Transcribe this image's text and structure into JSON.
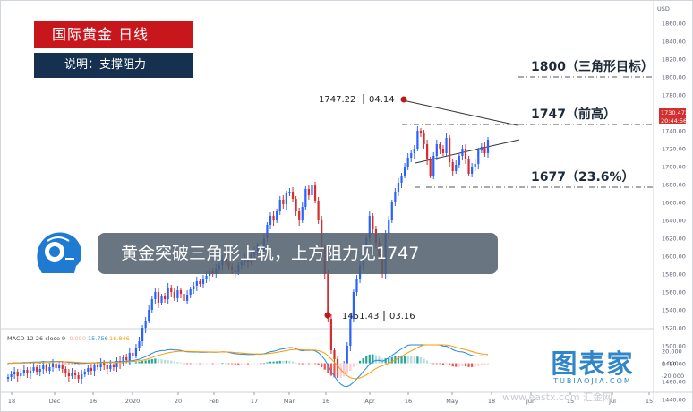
{
  "title": "国际黄金 日线",
  "subtitle": "说明：支撑阻力",
  "banner": "黄金突破三角形上轨，上方阻力见1747",
  "brand": {
    "cn": "图表家",
    "en": "TUBIAOJIA.COM"
  },
  "watermark": "www.eastx.com  汇金网",
  "colors": {
    "title_bg": "#c8161d",
    "subtitle_bg": "#16314f",
    "up": "#2962ff",
    "down": "#d32f2f",
    "accent": "#2f86c8"
  },
  "chart_data": [
    {
      "type": "candlestick",
      "ylabel": "USD",
      "ylim": [
        1440,
        1880
      ],
      "y_ticks": [
        1440,
        1460,
        1480,
        1500,
        1520,
        1540,
        1560,
        1580,
        1600,
        1620,
        1640,
        1660,
        1680,
        1700,
        1720,
        1740,
        1760,
        1780,
        1800,
        1820,
        1840,
        1860
      ],
      "x_ticks": [
        "18",
        "Dec",
        "16",
        "2020",
        "20",
        "Feb",
        "17",
        "Mar",
        "16",
        "Apr",
        "16",
        "May",
        "18",
        "Jun",
        "15",
        "Jul",
        "15"
      ],
      "current_price": "1730.472",
      "current_time": "20:44:56",
      "levels": [
        {
          "value": 1800,
          "label": "1800（三角形目标）"
        },
        {
          "value": 1747,
          "label": "1747（前高）"
        },
        {
          "value": 1677,
          "label": "1677（23.6%）"
        }
      ],
      "annotations": [
        {
          "price": "1747.22",
          "date": "04.14"
        },
        {
          "price": "1451.43",
          "date": "03.16"
        }
      ],
      "closes": [
        1465,
        1468,
        1471,
        1466,
        1470,
        1473,
        1469,
        1472,
        1476,
        1471,
        1474,
        1478,
        1472,
        1476,
        1480,
        1475,
        1478,
        1474,
        1470,
        1466,
        1470,
        1467,
        1463,
        1468,
        1471,
        1475,
        1472,
        1478,
        1476,
        1481,
        1478,
        1474,
        1479,
        1476,
        1483,
        1480,
        1487,
        1484,
        1492,
        1489,
        1498,
        1505,
        1520,
        1528,
        1540,
        1552,
        1560,
        1548,
        1555,
        1552,
        1565,
        1560,
        1553,
        1562,
        1558,
        1550,
        1557,
        1563,
        1567,
        1572,
        1569,
        1575,
        1578,
        1583,
        1580,
        1586,
        1590,
        1597,
        1593,
        1588,
        1585,
        1582,
        1590,
        1594,
        1598,
        1593,
        1602,
        1606,
        1612,
        1605,
        1620,
        1635,
        1645,
        1640,
        1650,
        1663,
        1658,
        1670,
        1672,
        1664,
        1650,
        1640,
        1655,
        1675,
        1668,
        1680,
        1662,
        1640,
        1610,
        1580,
        1530,
        1495,
        1485,
        1475,
        1470,
        1480,
        1500,
        1530,
        1560,
        1575,
        1590,
        1610,
        1620,
        1645,
        1630,
        1615,
        1600,
        1580,
        1625,
        1640,
        1660,
        1672,
        1682,
        1690,
        1700,
        1710,
        1715,
        1720,
        1740,
        1737,
        1725,
        1708,
        1690,
        1712,
        1725,
        1720,
        1715,
        1732,
        1705,
        1695,
        1702,
        1712,
        1720,
        1709,
        1692,
        1700,
        1703,
        1718,
        1722,
        1715,
        1730
      ]
    },
    {
      "type": "line",
      "title": "MACD 12 26 close 9",
      "readout": [
        "-0.000",
        "15.756",
        "16.846"
      ],
      "y_ticks": [
        "20.000",
        "0.000",
        "-20.000"
      ],
      "ylim": [
        -40,
        30
      ]
    }
  ]
}
